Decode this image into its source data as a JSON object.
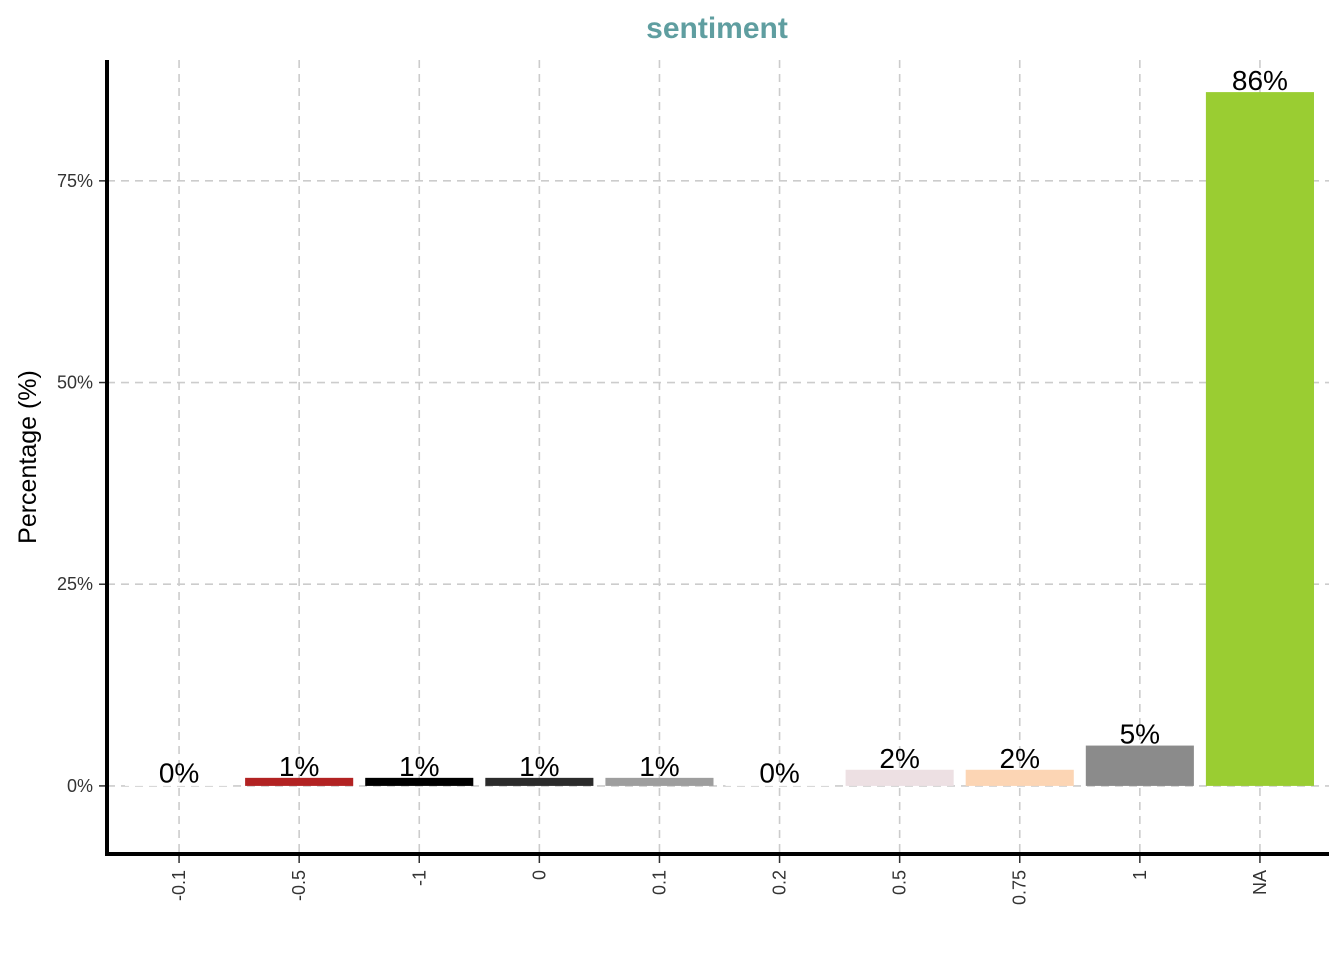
{
  "chart_data": {
    "type": "bar",
    "title": "sentiment",
    "xlabel": "",
    "ylabel": "Percentage (%)",
    "ylim": [
      -0.0844,
      0.8998
    ],
    "yticks": [
      0,
      0.25,
      0.5,
      0.75
    ],
    "ytick_labels": [
      "0%",
      "25%",
      "50%",
      "75%"
    ],
    "categories": [
      "-0.1",
      "-0.5",
      "-1",
      "0",
      "0.1",
      "0.2",
      "0.5",
      "0.75",
      "1",
      "NA"
    ],
    "values": [
      0.002,
      0.01,
      0.01,
      0.01,
      0.01,
      0.002,
      0.02,
      0.02,
      0.05,
      0.86
    ],
    "labels": [
      "0%",
      "1%",
      "1%",
      "1%",
      "1%",
      "0%",
      "2%",
      "2%",
      "5%",
      "86%"
    ],
    "colors": [
      "#ffffff",
      "#b22222",
      "#000000",
      "#2b2b2b",
      "#9e9e9e",
      "#ffffff",
      "#ede0e3",
      "#fcd5b4",
      "#8b8b8b",
      "#9acd32"
    ],
    "grid": true,
    "legend": "none"
  }
}
